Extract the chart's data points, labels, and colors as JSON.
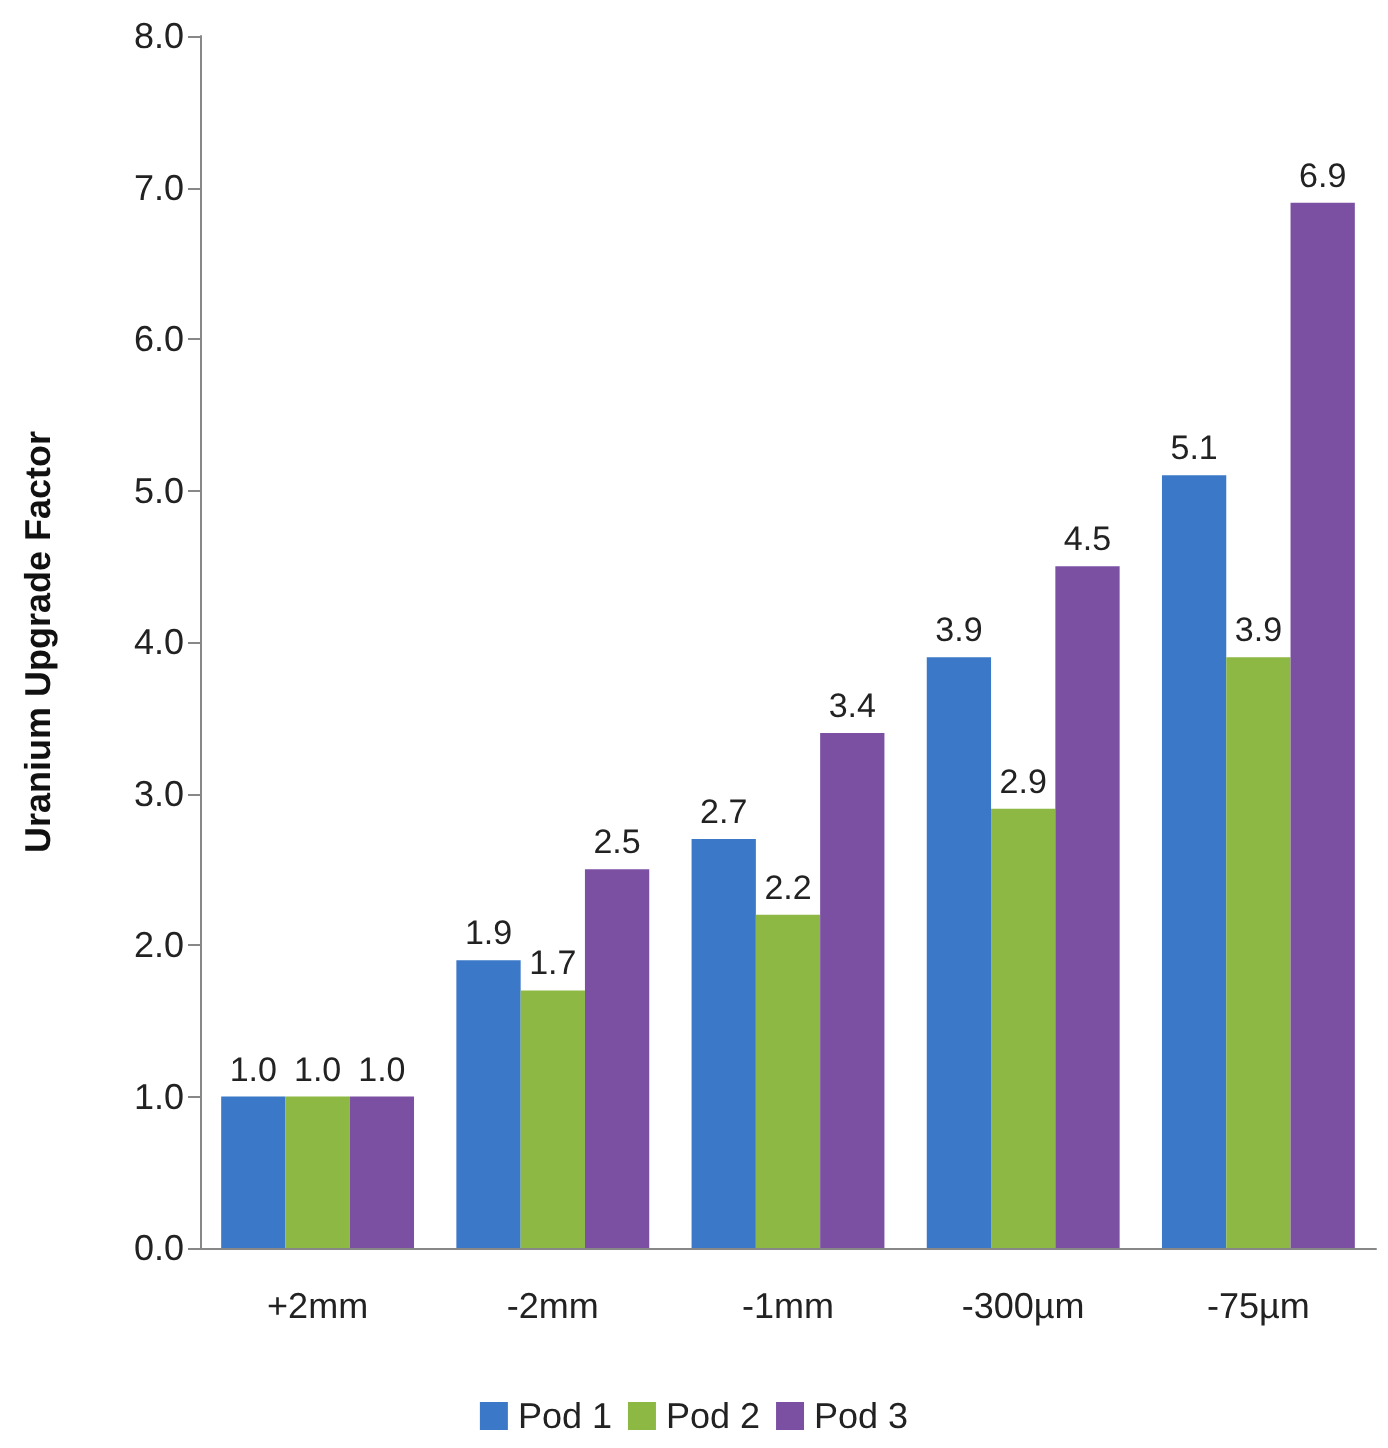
{
  "chart_data": {
    "type": "bar",
    "ylabel": "Uranium Upgrade Factor",
    "categories": [
      "+2mm",
      "-2mm",
      "-1mm",
      "-300µm",
      "-75µm"
    ],
    "series": [
      {
        "name": "Pod 1",
        "color": "#3b78c8",
        "values": [
          1.0,
          1.9,
          2.7,
          3.9,
          5.1
        ],
        "value_labels": [
          "1.0",
          "1.9",
          "2.7",
          "3.9",
          "5.1"
        ]
      },
      {
        "name": "Pod 2",
        "color": "#8cb843",
        "values": [
          1.0,
          1.7,
          2.2,
          2.9,
          3.9
        ],
        "value_labels": [
          "1.0",
          "1.7",
          "2.2",
          "2.9",
          "3.9"
        ]
      },
      {
        "name": "Pod 3",
        "color": "#7b50a3",
        "values": [
          1.0,
          2.5,
          3.4,
          4.5,
          6.9
        ],
        "value_labels": [
          "1.0",
          "2.5",
          "3.4",
          "4.5",
          "6.9"
        ]
      }
    ],
    "ylim": [
      0,
      8
    ],
    "yticks": [
      {
        "value": 0,
        "label": "0.0"
      },
      {
        "value": 1,
        "label": "1.0"
      },
      {
        "value": 2,
        "label": "2.0"
      },
      {
        "value": 3,
        "label": "3.0"
      },
      {
        "value": 4,
        "label": "4.0"
      },
      {
        "value": 5,
        "label": "5.0"
      },
      {
        "value": 6,
        "label": "6.0"
      },
      {
        "value": 7,
        "label": "7.0"
      },
      {
        "value": 8,
        "label": "8.0"
      }
    ],
    "grid": false,
    "legend": "bottom"
  }
}
